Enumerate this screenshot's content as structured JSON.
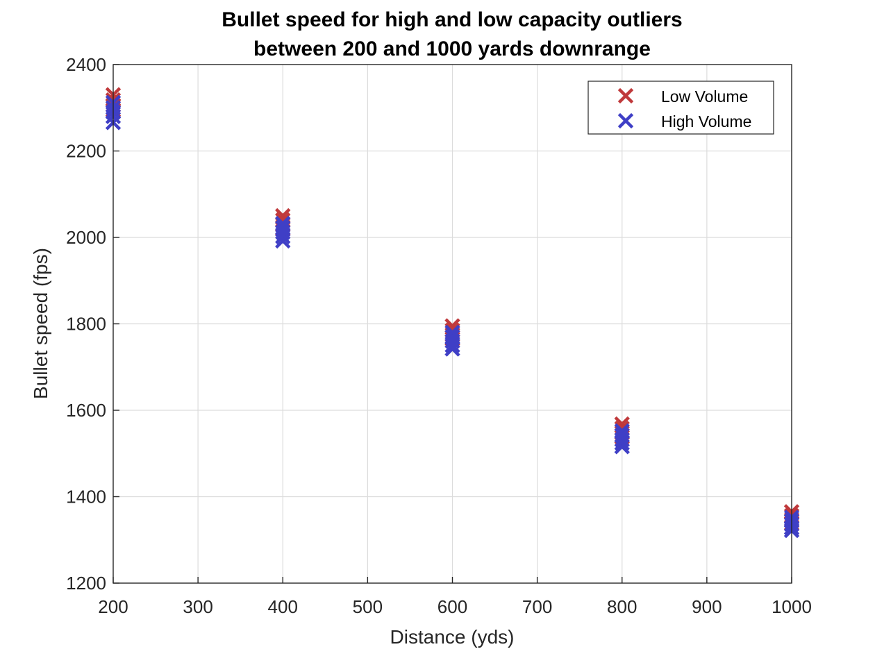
{
  "chart_data": {
    "type": "scatter",
    "title": "Bullet speed for high and low capacity outliers",
    "subtitle": "between 200 and 1000 yards downrange",
    "xlabel": "Distance (yds)",
    "ylabel": "Bullet speed (fps)",
    "xlim": [
      200,
      1000
    ],
    "ylim": [
      1200,
      2400
    ],
    "xticks": [
      200,
      300,
      400,
      500,
      600,
      700,
      800,
      900,
      1000
    ],
    "yticks": [
      1200,
      1400,
      1600,
      1800,
      2000,
      2200,
      2400
    ],
    "grid": true,
    "legend_position": "top-right",
    "marker": "x",
    "series": [
      {
        "name": "Low Volume",
        "color": "#c0393b",
        "points": [
          [
            200,
            2330
          ],
          [
            200,
            2318
          ],
          [
            200,
            2306
          ],
          [
            200,
            2295
          ],
          [
            400,
            2050
          ],
          [
            400,
            2040
          ],
          [
            400,
            2030
          ],
          [
            400,
            2020
          ],
          [
            600,
            1795
          ],
          [
            600,
            1785
          ],
          [
            600,
            1775
          ],
          [
            600,
            1765
          ],
          [
            800,
            1568
          ],
          [
            800,
            1558
          ],
          [
            800,
            1548
          ],
          [
            800,
            1538
          ],
          [
            1000,
            1365
          ],
          [
            1000,
            1356
          ],
          [
            1000,
            1347
          ],
          [
            1000,
            1338
          ]
        ]
      },
      {
        "name": "High Volume",
        "color": "#3f3fc6",
        "points": [
          [
            200,
            2312
          ],
          [
            200,
            2300
          ],
          [
            200,
            2290
          ],
          [
            200,
            2280
          ],
          [
            200,
            2266
          ],
          [
            400,
            2032
          ],
          [
            400,
            2022
          ],
          [
            400,
            2012
          ],
          [
            400,
            2002
          ],
          [
            400,
            1992
          ],
          [
            600,
            1780
          ],
          [
            600,
            1770
          ],
          [
            600,
            1760
          ],
          [
            600,
            1750
          ],
          [
            600,
            1742
          ],
          [
            800,
            1552
          ],
          [
            800,
            1542
          ],
          [
            800,
            1532
          ],
          [
            800,
            1524
          ],
          [
            800,
            1516
          ],
          [
            1000,
            1352
          ],
          [
            1000,
            1344
          ],
          [
            1000,
            1336
          ],
          [
            1000,
            1328
          ],
          [
            1000,
            1322
          ]
        ]
      }
    ]
  }
}
